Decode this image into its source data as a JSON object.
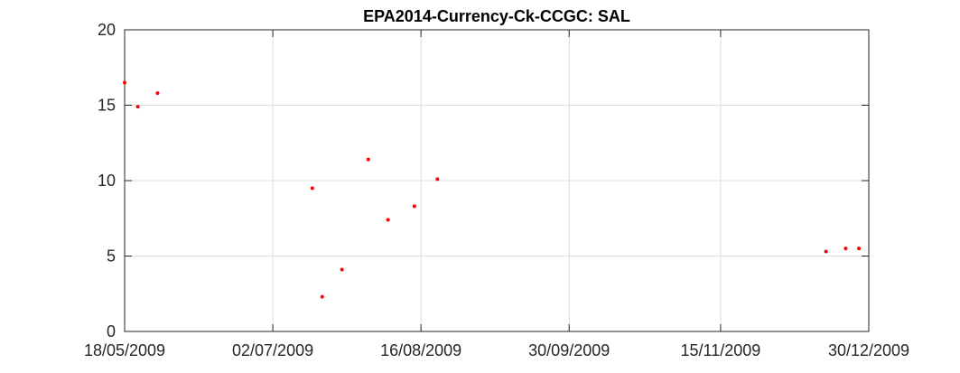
{
  "chart_data": {
    "type": "scatter",
    "title": "EPA2014-Currency-Ck-CCGC: SAL",
    "xlabel": "",
    "ylabel": "",
    "xlim": [
      "2009-05-18",
      "2009-12-30"
    ],
    "ylim": [
      0,
      20
    ],
    "xticks": [
      "2009-05-18",
      "2009-07-02",
      "2009-08-16",
      "2009-09-30",
      "2009-11-15",
      "2009-12-30"
    ],
    "xtick_labels": [
      "18/05/2009",
      "02/07/2009",
      "16/08/2009",
      "30/09/2009",
      "15/11/2009",
      "30/12/2009"
    ],
    "yticks": [
      0,
      5,
      10,
      15,
      20
    ],
    "ytick_labels": [
      "0",
      "5",
      "10",
      "15",
      "20"
    ],
    "grid": true,
    "marker_color": "#ff0000",
    "series": [
      {
        "points": [
          {
            "x": "2009-05-18",
            "y": 16.5
          },
          {
            "x": "2009-05-22",
            "y": 14.9
          },
          {
            "x": "2009-05-28",
            "y": 15.8
          },
          {
            "x": "2009-07-14",
            "y": 9.5
          },
          {
            "x": "2009-07-17",
            "y": 2.3
          },
          {
            "x": "2009-07-23",
            "y": 4.1
          },
          {
            "x": "2009-07-31",
            "y": 11.4
          },
          {
            "x": "2009-08-06",
            "y": 7.4
          },
          {
            "x": "2009-08-14",
            "y": 8.3
          },
          {
            "x": "2009-08-21",
            "y": 10.1
          },
          {
            "x": "2009-12-17",
            "y": 5.3
          },
          {
            "x": "2009-12-23",
            "y": 5.5
          },
          {
            "x": "2009-12-27",
            "y": 5.5
          }
        ]
      }
    ]
  }
}
